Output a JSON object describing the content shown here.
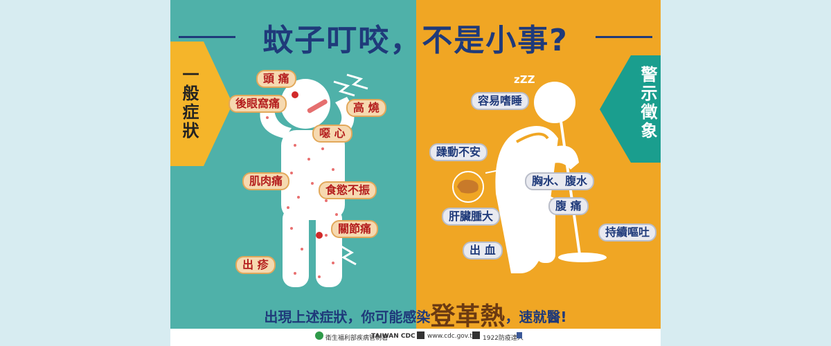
{
  "title": "蚊子叮咬，不是小事?",
  "left_label": "一般症狀",
  "right_label": "警示徵象",
  "general_symptoms": [
    "頭 痛",
    "後眼窩痛",
    "高 燒",
    "噁 心",
    "肌肉痛",
    "食慾不振",
    "關節痛",
    "出 疹"
  ],
  "warning_signs": [
    "容易嗜睡",
    "躁動不安",
    "胸水、腹水",
    "腹 痛",
    "肝臟腫大",
    "持續嘔吐",
    "出 血"
  ],
  "sleep_mark": "zZZ",
  "bottom": {
    "prefix": "出現上述症狀，你可能感染",
    "highlight": "登革熱",
    "suffix": "，速就醫!"
  },
  "footer": {
    "org": "衛生福利部疾病管制署",
    "org_en": "TAIWAN CDC",
    "site": "www.cdc.gov.tw",
    "hotline": "1922防疫達人"
  },
  "colors": {
    "teal": "#4fb1a9",
    "orange": "#f0a624",
    "navy": "#1f3a7a",
    "red_text": "#b41e1e"
  }
}
